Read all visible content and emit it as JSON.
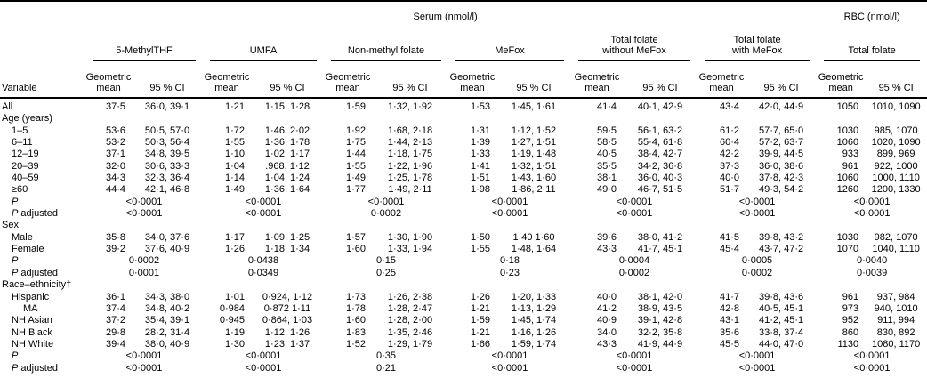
{
  "table": {
    "header": {
      "variable": "Variable",
      "super_groups": [
        {
          "label": "Serum (nmol/l)"
        },
        {
          "label": "RBC (nmol/l)"
        }
      ],
      "groups": [
        {
          "id": "5-methylthf",
          "label": "5-MethylTHF"
        },
        {
          "id": "umfa",
          "label": "UMFA"
        },
        {
          "id": "non-methyl-folate",
          "label": "Non-methyl folate"
        },
        {
          "id": "mefox",
          "label": "MeFox"
        },
        {
          "id": "total-folate-without-mefox",
          "label": "Total folate\nwithout MeFox"
        },
        {
          "id": "total-folate-with-mefox",
          "label": "Total folate\nwith MeFox"
        },
        {
          "id": "rbc-total-folate",
          "label": "Total folate"
        }
      ],
      "mean_label": "Geometric\nmean",
      "ci_label": "95 % CI"
    },
    "rows": [
      {
        "type": "data",
        "label": "All",
        "indent": 0,
        "cells": [
          [
            "37·5",
            "36·0, 39·1"
          ],
          [
            "1·21",
            "1·15, 1·28"
          ],
          [
            "1·59",
            "1·32, 1·92"
          ],
          [
            "1·53",
            "1·45, 1·61"
          ],
          [
            "41·4",
            "40·1, 42·9"
          ],
          [
            "43·4",
            "42·0, 44·9"
          ],
          [
            "1050",
            "1010, 1090"
          ]
        ]
      },
      {
        "type": "section",
        "label": "Age (years)"
      },
      {
        "type": "data",
        "label": "1–5",
        "indent": 1,
        "cells": [
          [
            "53·6",
            "50·5, 57·0"
          ],
          [
            "1·72",
            "1·46, 2·02"
          ],
          [
            "1·92",
            "1·68, 2·18"
          ],
          [
            "1·31",
            "1·12, 1·52"
          ],
          [
            "59·5",
            "56·1, 63·2"
          ],
          [
            "61·2",
            "57·7, 65·0"
          ],
          [
            "1030",
            "985, 1070"
          ]
        ]
      },
      {
        "type": "data",
        "label": "6–11",
        "indent": 1,
        "cells": [
          [
            "53·2",
            "50·3, 56·4"
          ],
          [
            "1·55",
            "1·36, 1·78"
          ],
          [
            "1·75",
            "1·44, 2·13"
          ],
          [
            "1·39",
            "1·27, 1·51"
          ],
          [
            "58·5",
            "55·4, 61·8"
          ],
          [
            "60·4",
            "57·2, 63·7"
          ],
          [
            "1060",
            "1020, 1090"
          ]
        ]
      },
      {
        "type": "data",
        "label": "12–19",
        "indent": 1,
        "cells": [
          [
            "37·1",
            "34·8, 39·5"
          ],
          [
            "1·10",
            "1·02, 1·17"
          ],
          [
            "1·44",
            "1·18, 1·75"
          ],
          [
            "1·33",
            "1·19, 1·48"
          ],
          [
            "40·5",
            "38·4, 42·7"
          ],
          [
            "42·2",
            "39·9, 44·5"
          ],
          [
            "933",
            "899, 969"
          ]
        ]
      },
      {
        "type": "data",
        "label": "20–39",
        "indent": 1,
        "cells": [
          [
            "32·0",
            "30·6, 33·3"
          ],
          [
            "1·04",
            ".968, 1·12"
          ],
          [
            "1·55",
            "1·22, 1·96"
          ],
          [
            "1·41",
            "1·32, 1·51"
          ],
          [
            "35·5",
            "34·2, 36·8"
          ],
          [
            "37·3",
            "36·0, 38·6"
          ],
          [
            "961",
            "922, 1000"
          ]
        ]
      },
      {
        "type": "data",
        "label": "40–59",
        "indent": 1,
        "cells": [
          [
            "34·3",
            "32·3, 36·4"
          ],
          [
            "1·14",
            "1·04, 1·24"
          ],
          [
            "1·49",
            "1·25, 1·78"
          ],
          [
            "1·51",
            "1·43, 1·60"
          ],
          [
            "38·1",
            "36·0, 40·3"
          ],
          [
            "40·0",
            "37·8, 42·3"
          ],
          [
            "1060",
            "1000, 1110"
          ]
        ]
      },
      {
        "type": "data",
        "label": "≥60",
        "indent": 1,
        "cells": [
          [
            "44·4",
            "42·1, 46·8"
          ],
          [
            "1·49",
            "1·36, 1·64"
          ],
          [
            "1·77",
            "1·49, 2·11"
          ],
          [
            "1·98",
            "1·86, 2·11"
          ],
          [
            "49·0",
            "46·7, 51·5"
          ],
          [
            "51·7",
            "49·3, 54·2"
          ],
          [
            "1260",
            "1200, 1330"
          ]
        ]
      },
      {
        "type": "p",
        "label": "P",
        "indent": 1,
        "values": [
          "<0·0001",
          "<0·0001",
          "<0·0001",
          "<0·0001",
          "<0·0001",
          "<0·0001",
          "<0·0001"
        ]
      },
      {
        "type": "p",
        "label": "P adjusted",
        "indent": 1,
        "values": [
          "<0·0001",
          "<0·0001",
          "0·0002",
          "<0·0001",
          "<0·0001",
          "<0·0001",
          "<0·0001"
        ]
      },
      {
        "type": "section",
        "label": "Sex"
      },
      {
        "type": "data",
        "label": "Male",
        "indent": 1,
        "cells": [
          [
            "35·8",
            "34·0, 37·6"
          ],
          [
            "1·17",
            "1·09, 1·25"
          ],
          [
            "1·57",
            "1·30, 1·90"
          ],
          [
            "1·50",
            "1·40 1·60"
          ],
          [
            "39·6",
            "38·0, 41·2"
          ],
          [
            "41·5",
            "39·8, 43·2"
          ],
          [
            "1030",
            "982, 1070"
          ]
        ]
      },
      {
        "type": "data",
        "label": "Female",
        "indent": 1,
        "cells": [
          [
            "39·2",
            "37·6, 40·9"
          ],
          [
            "1·26",
            "1·18, 1·34"
          ],
          [
            "1·60",
            "1·33, 1·94"
          ],
          [
            "1·55",
            "1·48, 1·64"
          ],
          [
            "43·3",
            "41·7, 45·1"
          ],
          [
            "45·4",
            "43·7, 47·2"
          ],
          [
            "1070",
            "1040, 1110"
          ]
        ]
      },
      {
        "type": "p",
        "label": "P",
        "indent": 1,
        "values": [
          "0·0002",
          "0·0438",
          "0·15",
          "0·18",
          "0·0004",
          "0·0005",
          "0·0040"
        ]
      },
      {
        "type": "p",
        "label": "P adjusted",
        "indent": 1,
        "values": [
          "0·0001",
          "0·0349",
          "0·25",
          "0·23",
          "0·0002",
          "0·0002",
          "0·0039"
        ]
      },
      {
        "type": "section",
        "label": "Race–ethnicity†"
      },
      {
        "type": "data",
        "label": "Hispanic",
        "indent": 1,
        "cells": [
          [
            "36·1",
            "34·3, 38·0"
          ],
          [
            "1·01",
            "0·924, 1·12"
          ],
          [
            "1·73",
            "1·26, 2·38"
          ],
          [
            "1·26",
            "1·20, 1·33"
          ],
          [
            "40·0",
            "38·1, 42·0"
          ],
          [
            "41·7",
            "39·8, 43·6"
          ],
          [
            "961",
            "937, 984"
          ]
        ]
      },
      {
        "type": "data",
        "label": "MA",
        "indent": 2,
        "cells": [
          [
            "37·4",
            "34·8, 40·2"
          ],
          [
            "0·984",
            "0·872 1·11"
          ],
          [
            "1·78",
            "1·28, 2·47"
          ],
          [
            "1·21",
            "1·13, 1·29"
          ],
          [
            "41·2",
            "38·9, 43·5"
          ],
          [
            "42·8",
            "40·5, 45·1"
          ],
          [
            "973",
            "940, 1010"
          ]
        ]
      },
      {
        "type": "data",
        "label": "NH Asian",
        "indent": 1,
        "cells": [
          [
            "37·2",
            "35·4, 39·1"
          ],
          [
            "0·945",
            "0·864, 1·03"
          ],
          [
            "1·60",
            "1·28, 2·00"
          ],
          [
            "1·59",
            "1·45, 1·74"
          ],
          [
            "40·9",
            "39·1, 42·8"
          ],
          [
            "43·1",
            "41·2, 45·1"
          ],
          [
            "952",
            "911, 994"
          ]
        ]
      },
      {
        "type": "data",
        "label": "NH Black",
        "indent": 1,
        "cells": [
          [
            "29·8",
            "28·2, 31·4"
          ],
          [
            "1·19",
            "1·12, 1·26"
          ],
          [
            "1·83",
            "1·35, 2·46"
          ],
          [
            "1·21",
            "1·16, 1·26"
          ],
          [
            "34·0",
            "32·2, 35·8"
          ],
          [
            "35·6",
            "33·8, 37·4"
          ],
          [
            "860",
            "830, 892"
          ]
        ]
      },
      {
        "type": "data",
        "label": "NH White",
        "indent": 1,
        "cells": [
          [
            "39·4",
            "38·0, 40·9"
          ],
          [
            "1·30",
            "1·23, 1·37"
          ],
          [
            "1·52",
            "1·29, 1·79"
          ],
          [
            "1·66",
            "1·59, 1·74"
          ],
          [
            "43·3",
            "41·9, 44·9"
          ],
          [
            "45·5",
            "44·0, 47·0"
          ],
          [
            "1130",
            "1080, 1170"
          ]
        ]
      },
      {
        "type": "p",
        "label": "P",
        "indent": 1,
        "values": [
          "<0·0001",
          "<0·0001",
          "0·35",
          "<0·0001",
          "<0·0001",
          "<0·0001",
          "<0·0001"
        ]
      },
      {
        "type": "p",
        "label": "P adjusted",
        "indent": 1,
        "values": [
          "<0·0001",
          "<0·0001",
          "0·21",
          "<0·0001",
          "<0·0001",
          "<0·0001",
          "<0·0001"
        ]
      }
    ]
  }
}
